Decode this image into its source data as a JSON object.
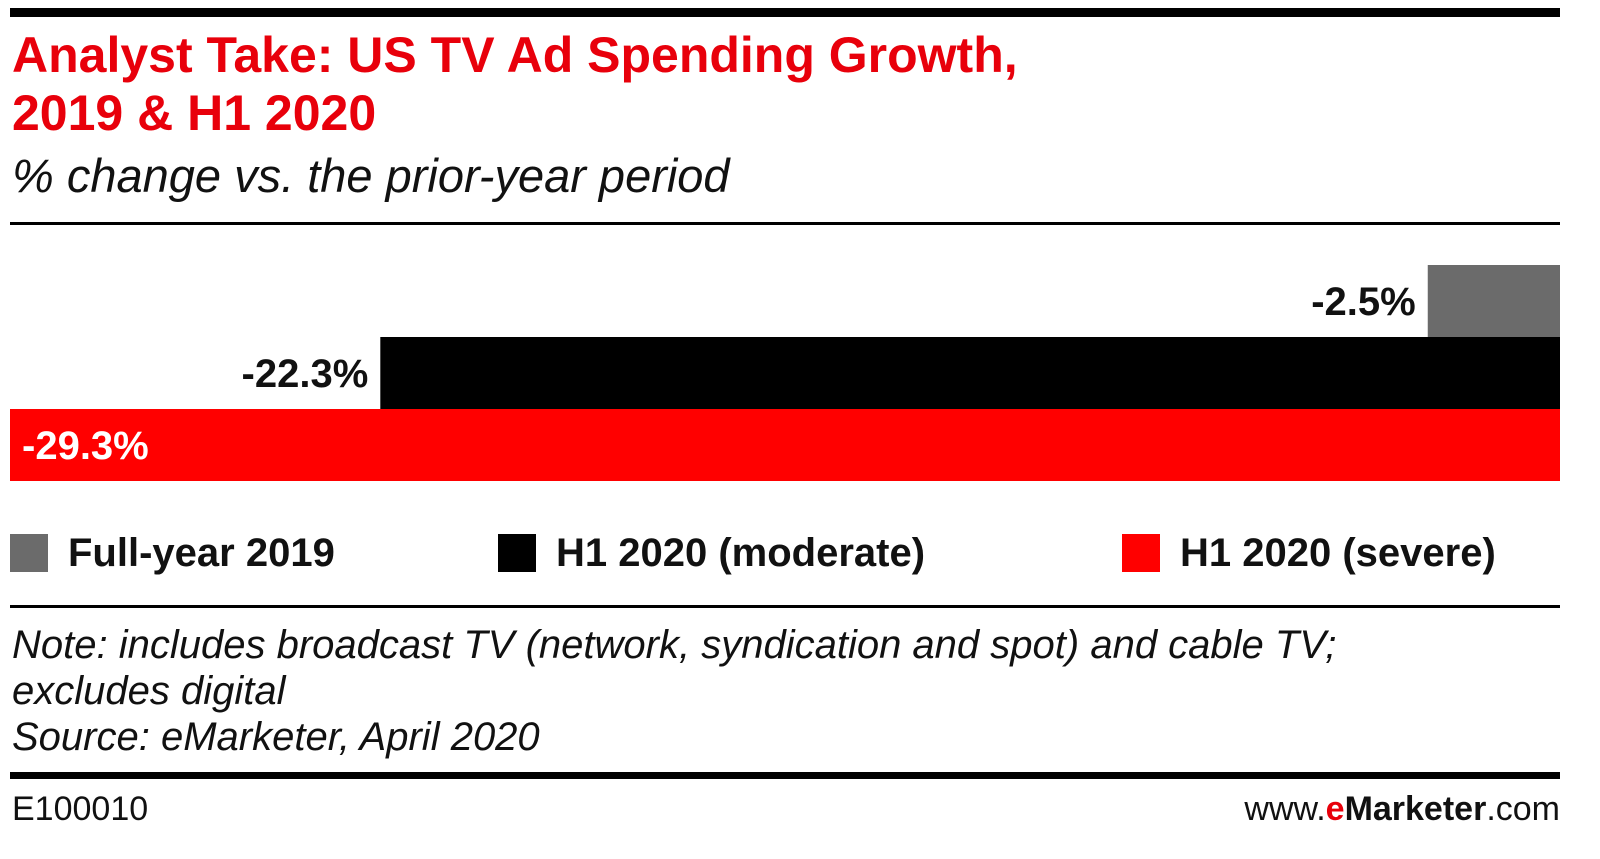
{
  "header": {
    "title_line1": "Analyst Take: US TV Ad Spending Growth,",
    "title_line2": "2019 & H1 2020",
    "subtitle": "% change vs. the prior-year period"
  },
  "chart_data": {
    "type": "bar",
    "orientation": "horizontal",
    "title": "Analyst Take: US TV Ad Spending Growth, 2019 & H1 2020",
    "subtitle": "% change vs. the prior-year period",
    "series": [
      {
        "name": "Full-year 2019",
        "value": -2.5,
        "label": "-2.5%",
        "color": "#6b6b6b"
      },
      {
        "name": "H1 2020 (moderate)",
        "value": -22.3,
        "label": "-22.3%",
        "color": "#000000"
      },
      {
        "name": "H1 2020 (severe)",
        "value": -29.3,
        "label": "-29.3%",
        "color": "#ff0000"
      }
    ],
    "xlim": [
      -29.3,
      0
    ],
    "legend_position": "bottom",
    "grid": false
  },
  "footer": {
    "note_line1": "Note: includes broadcast TV (network, syndication and spot) and cable TV;",
    "note_line2": "excludes digital",
    "source": "Source: eMarketer, April 2020",
    "chart_id": "E100010",
    "brand_prefix": "www.",
    "brand_e": "e",
    "brand_name": "Marketer",
    "brand_suffix": ".com"
  }
}
